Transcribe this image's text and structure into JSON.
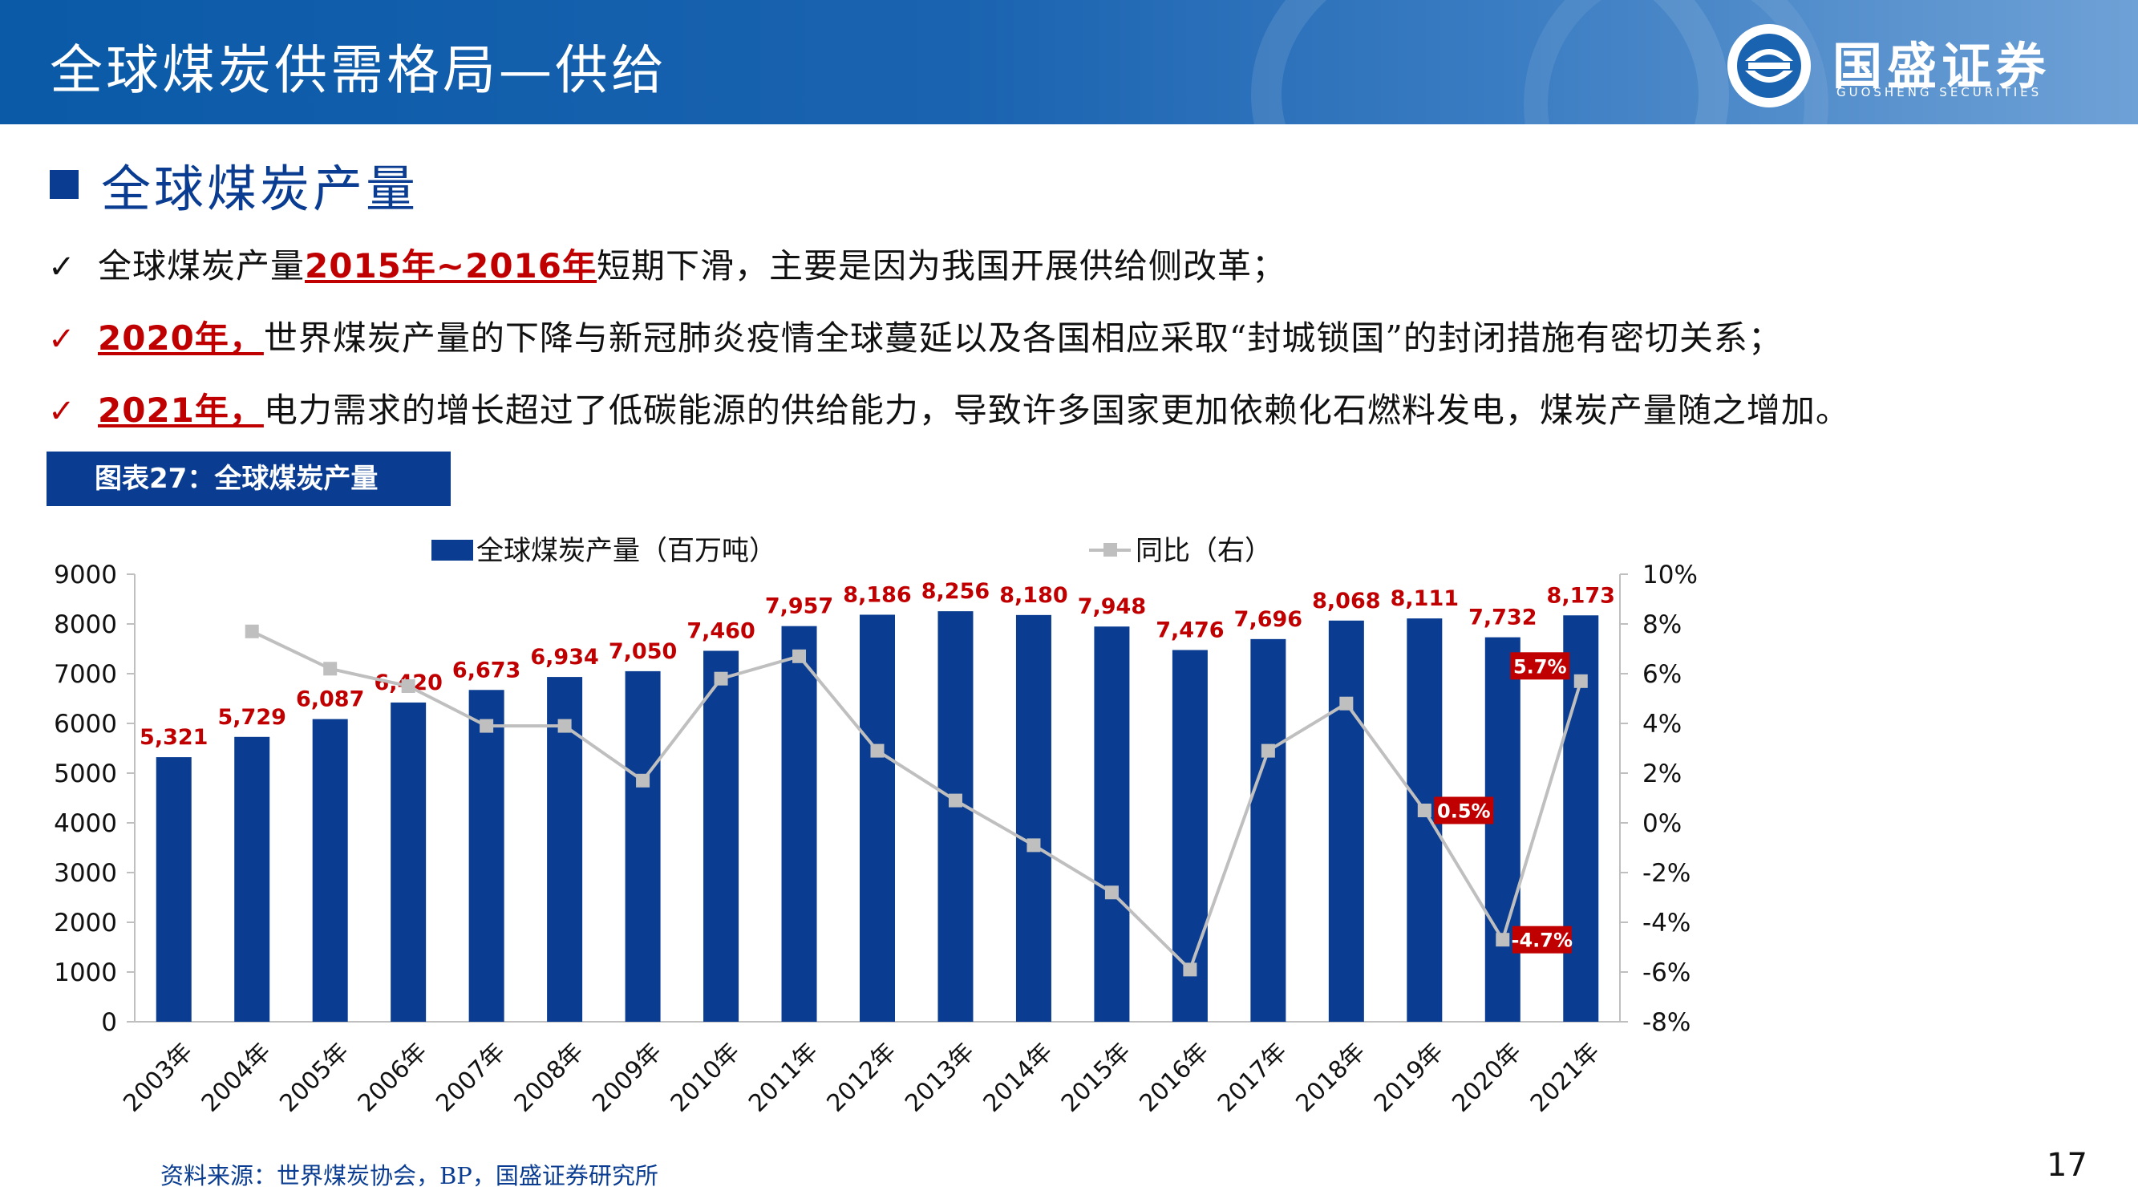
{
  "header": {
    "title": "全球煤炭供需格局—供给",
    "brand_name": "国盛证券",
    "brand_sub": "GUOSHENG SECURITIES"
  },
  "section": {
    "title": "全球煤炭产量"
  },
  "bullets": [
    {
      "check": "✓",
      "check_color": "#111111",
      "pre": "全球煤炭产量",
      "emph": "2015年~2016年",
      "post": "短期下滑，主要是因为我国开展供给侧改革；"
    },
    {
      "check": "✓",
      "check_color": "#c00000",
      "pre": "",
      "emph": "2020年，",
      "post": "世界煤炭产量的下降与新冠肺炎疫情全球蔓延以及各国相应采取“封城锁国”的封闭措施有密切关系；"
    },
    {
      "check": "✓",
      "check_color": "#c00000",
      "pre": "",
      "emph": "2021年，",
      "post": "电力需求的增长超过了低碳能源的供给能力，导致许多国家更加依赖化石燃料发电，煤炭产量随之增加。"
    }
  ],
  "figure": {
    "label": "图表27：全球煤炭产量"
  },
  "footer": {
    "source": "资料来源：世界煤炭协会，BP，国盛证券研究所",
    "page": "17"
  },
  "chart_data": {
    "type": "bar",
    "categories": [
      "2003年",
      "2004年",
      "2005年",
      "2006年",
      "2007年",
      "2008年",
      "2009年",
      "2010年",
      "2011年",
      "2012年",
      "2013年",
      "2014年",
      "2015年",
      "2016年",
      "2017年",
      "2018年",
      "2019年",
      "2020年",
      "2021年"
    ],
    "series": [
      {
        "name": "全球煤炭产量（百万吨）",
        "type": "bar",
        "axis": "left",
        "color": "#0a3d91",
        "values": [
          5321,
          5729,
          6087,
          6420,
          6673,
          6934,
          7050,
          7460,
          7957,
          8186,
          8256,
          8180,
          7948,
          7476,
          7696,
          8068,
          8111,
          7732,
          8173
        ],
        "labels": [
          "5,321",
          "5,729",
          "6,087",
          "6,420",
          "6,673",
          "6,934",
          "7,050",
          "7,460",
          "7,957",
          "8,186",
          "8,256",
          "8,180",
          "7,948",
          "7,476",
          "7,696",
          "8,068",
          "8,111",
          "7,732",
          "8,173"
        ]
      },
      {
        "name": "同比（右）",
        "type": "line",
        "axis": "right",
        "color": "#bfbfbf",
        "values": [
          null,
          7.7,
          6.2,
          5.5,
          3.9,
          3.9,
          1.7,
          5.8,
          6.7,
          2.9,
          0.9,
          -0.9,
          -2.8,
          -5.9,
          2.9,
          4.8,
          0.5,
          -4.7,
          5.7
        ],
        "highlight_labels": [
          {
            "index": 16,
            "text": "0.5%"
          },
          {
            "index": 17,
            "text": "-4.7%"
          },
          {
            "index": 18,
            "text": "5.7%"
          }
        ]
      }
    ],
    "ylim": [
      0,
      9000
    ],
    "yticks": [
      "9000",
      "8000",
      "7000",
      "6000",
      "5000",
      "4000",
      "3000",
      "2000",
      "1000",
      "0"
    ],
    "y2lim": [
      -8,
      10
    ],
    "y2ticks": [
      "10%",
      "8%",
      "6%",
      "4%",
      "2%",
      "0%",
      "-2%",
      "-4%",
      "-6%",
      "-8%"
    ],
    "label_color": "#c00000",
    "legend_position": "top-center",
    "grid": false
  }
}
